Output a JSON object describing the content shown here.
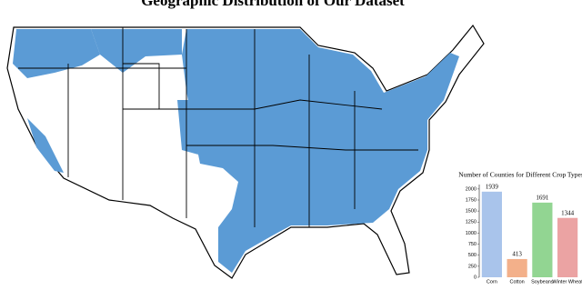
{
  "title": "Geographic Distribution of Our Dataset",
  "chart_data": {
    "type": "bar",
    "title": "Number of Counties for Different Crop Types",
    "categories": [
      "Corn",
      "Cotton",
      "Soybeans",
      "Winter Wheat"
    ],
    "values": [
      1939,
      413,
      1691,
      1344
    ],
    "colors": [
      "#a9c4eb",
      "#f3b08a",
      "#92d592",
      "#eba3a3"
    ],
    "ylim": [
      0,
      2100
    ],
    "yticks": [
      0,
      250,
      500,
      750,
      1000,
      1250,
      1500,
      1750,
      2000
    ],
    "grid": false
  }
}
